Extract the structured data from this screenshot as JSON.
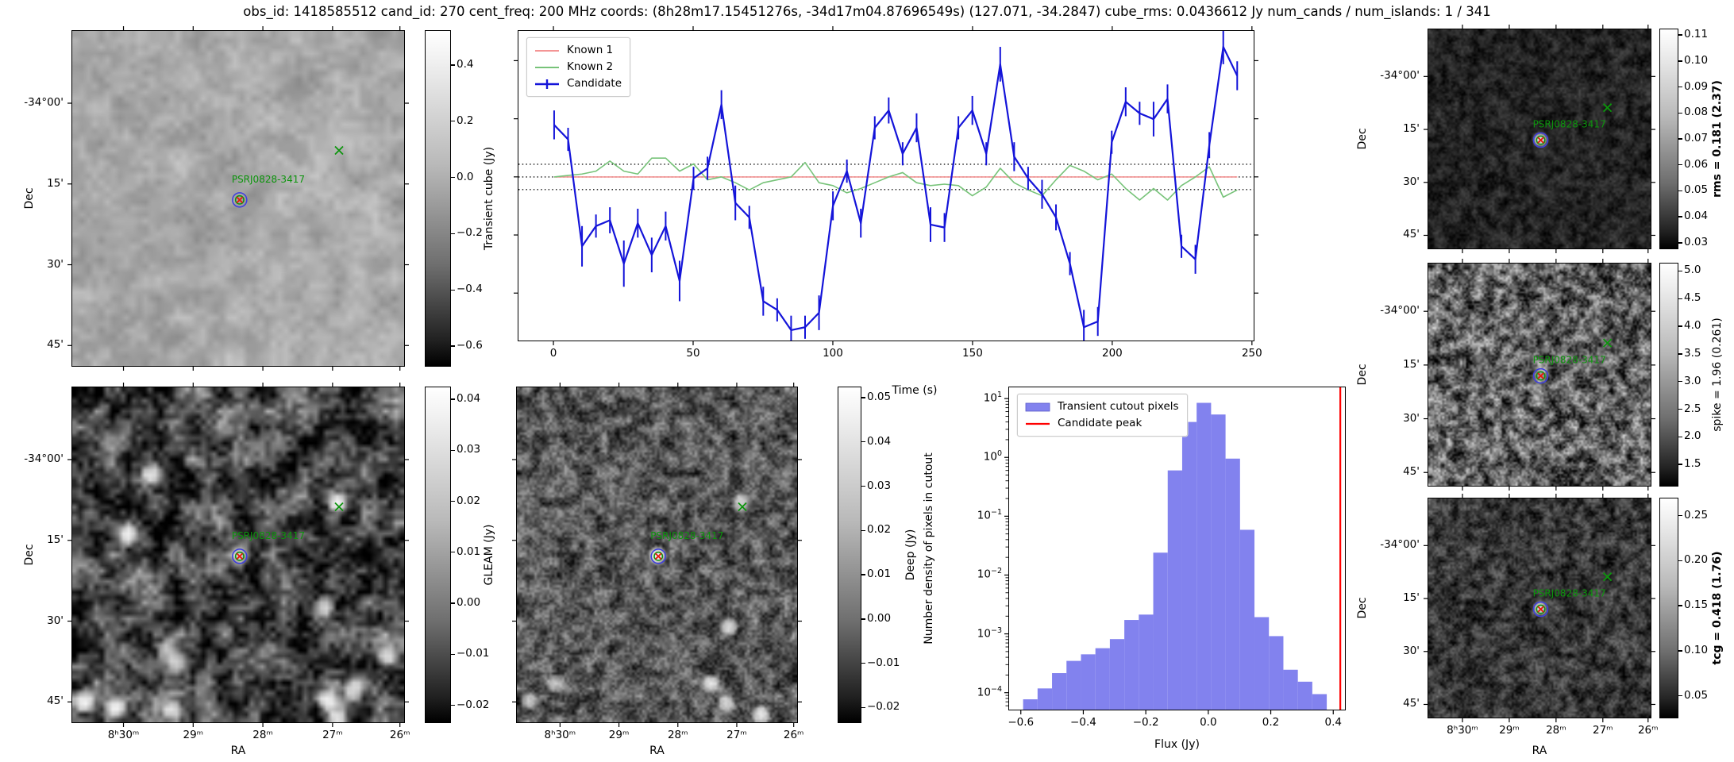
{
  "title": "obs_id: 1418585512 cand_id: 270 cent_freq: 200 MHz coords: (8h28m17.15451276s, -34d17m04.87696549s) (127.071, -34.2847) cube_rms: 0.0436612 Jy num_cands / num_islands: 1 / 341",
  "source_label": "PSRJ0828-3417",
  "colors": {
    "candidate": "#1414d9",
    "known1": "#f49595",
    "known2": "#77c379",
    "hist_fill": "#8282ee",
    "candidate_peak": "#ff0000",
    "annotation_green": "#0c940c",
    "marker_red": "#e8160c",
    "contour_blue": "#3d3de0"
  },
  "axes": {
    "dec_label": "Dec",
    "ra_label": "RA",
    "dec_ticks": [
      "-34°00'",
      "15'",
      "30'",
      "45'"
    ],
    "ra_ticks": [
      "8ʰ30ᵐ",
      "29ᵐ",
      "28ᵐ",
      "27ᵐ",
      "26ᵐ"
    ]
  },
  "panels": {
    "transient": {
      "colorbar_label": "Transient cube (Jy)",
      "label_bold": false,
      "vmin": -0.673,
      "vmax": 0.524,
      "ticks": [
        0.4,
        0.2,
        0.0,
        -0.2,
        -0.4,
        -0.6
      ],
      "decimals": 1
    },
    "gleam": {
      "colorbar_label": "GLEAM (Jy)",
      "label_bold": false,
      "vmin": -0.0235,
      "vmax": 0.0425,
      "ticks": [
        0.04,
        0.03,
        0.02,
        0.01,
        0.0,
        -0.01,
        -0.02
      ],
      "decimals": 2
    },
    "deep": {
      "colorbar_label": "Deep (Jy)",
      "label_bold": false,
      "vmin": -0.0235,
      "vmax": 0.0525,
      "ticks": [
        0.05,
        0.04,
        0.03,
        0.02,
        0.01,
        0.0,
        -0.01,
        -0.02
      ],
      "decimals": 2
    },
    "rms": {
      "colorbar_label": "rms = 0.181 (2.37)",
      "label_bold": true,
      "vmin": 0.0275,
      "vmax": 0.1125,
      "ticks": [
        0.11,
        0.1,
        0.09,
        0.08,
        0.07,
        0.06,
        0.05,
        0.04,
        0.03
      ],
      "decimals": 2
    },
    "spike": {
      "colorbar_label": "spike = 1.96 (0.261)",
      "label_bold": false,
      "vmin": 1.1,
      "vmax": 5.15,
      "ticks": [
        5.0,
        4.5,
        4.0,
        3.5,
        3.0,
        2.5,
        2.0,
        1.5
      ],
      "decimals": 1
    },
    "tcg": {
      "colorbar_label": "tcg = 0.418 (1.76)",
      "label_bold": true,
      "vmin": 0.025,
      "vmax": 0.27,
      "ticks": [
        0.25,
        0.2,
        0.15,
        0.1,
        0.05
      ],
      "decimals": 2
    }
  },
  "chart_data": [
    {
      "type": "line",
      "name": "lightcurve",
      "xlabel": "Time (s)",
      "ylabel": "",
      "xlim": [
        -12.8,
        250.9
      ],
      "ylim": [
        -0.566,
        0.505
      ],
      "x_ticks": [
        0,
        50,
        100,
        150,
        200,
        250
      ],
      "y_ticks_unlabeled": [
        0.4,
        0.2,
        0.0,
        -0.2,
        -0.4
      ],
      "dotted_hlines": [
        0.0437,
        0.0,
        -0.0437
      ],
      "legend_position": "upper left",
      "x": [
        0,
        5,
        10,
        15,
        20,
        25,
        30,
        35,
        40,
        45,
        50,
        55,
        60,
        65,
        70,
        75,
        80,
        85,
        90,
        95,
        100,
        105,
        110,
        115,
        120,
        125,
        130,
        135,
        140,
        145,
        150,
        155,
        160,
        165,
        170,
        175,
        180,
        185,
        190,
        195,
        200,
        205,
        210,
        215,
        220,
        225,
        230,
        235,
        240,
        245
      ],
      "series": [
        {
          "name": "Known 1",
          "y": [
            0,
            0,
            0,
            0,
            0,
            0,
            0,
            0,
            0,
            0,
            0,
            0,
            0,
            0,
            0,
            0,
            0,
            0,
            0,
            0,
            0,
            0,
            0,
            0,
            0,
            0,
            0,
            0,
            0,
            0,
            0,
            0,
            0,
            0,
            0,
            0,
            0,
            0,
            0,
            0,
            0,
            0,
            0,
            0,
            0,
            0,
            0,
            0,
            0,
            0
          ]
        },
        {
          "name": "Known 2",
          "y": [
            0.0,
            0.005,
            0.01,
            0.02,
            0.055,
            0.02,
            0.01,
            0.065,
            0.065,
            0.02,
            0.045,
            -0.01,
            0.0,
            -0.02,
            -0.045,
            -0.02,
            -0.01,
            0.0,
            0.05,
            -0.02,
            -0.03,
            -0.055,
            -0.04,
            -0.02,
            0.0,
            0.015,
            -0.02,
            -0.03,
            -0.025,
            -0.03,
            -0.065,
            -0.035,
            0.03,
            -0.02,
            -0.045,
            -0.065,
            -0.01,
            0.04,
            0.02,
            -0.01,
            0.01,
            -0.04,
            -0.08,
            -0.04,
            -0.08,
            -0.03,
            0.0,
            0.035,
            -0.07,
            -0.045
          ]
        },
        {
          "name": "Candidate",
          "y": [
            0.18,
            0.13,
            -0.24,
            -0.17,
            -0.15,
            -0.3,
            -0.16,
            -0.27,
            -0.17,
            -0.36,
            -0.005,
            0.03,
            0.25,
            -0.09,
            -0.14,
            -0.43,
            -0.46,
            -0.53,
            -0.52,
            -0.47,
            -0.1,
            0.02,
            -0.16,
            0.17,
            0.23,
            0.08,
            0.17,
            -0.165,
            -0.175,
            0.17,
            0.23,
            0.08,
            0.39,
            0.07,
            -0.005,
            -0.06,
            -0.14,
            -0.3,
            -0.52,
            -0.5,
            0.12,
            0.26,
            0.22,
            0.2,
            0.27,
            -0.24,
            -0.285,
            0.11,
            0.45,
            0.35
          ],
          "yerr": [
            0.05,
            0.04,
            0.07,
            0.04,
            0.045,
            0.08,
            0.05,
            0.06,
            0.05,
            0.07,
            0.04,
            0.04,
            0.05,
            0.06,
            0.04,
            0.05,
            0.04,
            0.05,
            0.04,
            0.06,
            0.05,
            0.04,
            0.05,
            0.04,
            0.045,
            0.04,
            0.05,
            0.06,
            0.05,
            0.04,
            0.05,
            0.04,
            0.06,
            0.05,
            0.04,
            0.05,
            0.045,
            0.04,
            0.06,
            0.05,
            0.04,
            0.05,
            0.04,
            0.06,
            0.05,
            0.04,
            0.05,
            0.045,
            0.06,
            0.05
          ]
        }
      ],
      "legend": [
        "Known 1",
        "Known 2",
        "Candidate"
      ]
    },
    {
      "type": "bar",
      "name": "histogram",
      "xlabel": "Flux (Jy)",
      "ylabel": "Number density of pixels in cutout",
      "yscale": "log",
      "xlim": [
        -0.64,
        0.44
      ],
      "ylim": [
        5e-05,
        16
      ],
      "x_ticks": [
        -0.6,
        -0.4,
        -0.2,
        0.0,
        0.2,
        0.4
      ],
      "y_tick_exponents": [
        1,
        0,
        -1,
        -2,
        -3,
        -4
      ],
      "bin_start": -0.595,
      "bin_width": 0.0465,
      "densities": [
        7.5e-05,
        0.000115,
        0.00021,
        0.00034,
        0.00044,
        0.00056,
        0.0008,
        0.0017,
        0.0021,
        0.024,
        0.61,
        4.1,
        8.7,
        5.5,
        0.97,
        0.059,
        0.0019,
        0.0009,
        0.00024,
        0.00015,
        9.2e-05,
        4.9e-05
      ],
      "candidate_peak": 0.425,
      "legend": [
        "Transient cutout pixels",
        "Candidate peak"
      ],
      "legend_position": "upper left"
    }
  ]
}
